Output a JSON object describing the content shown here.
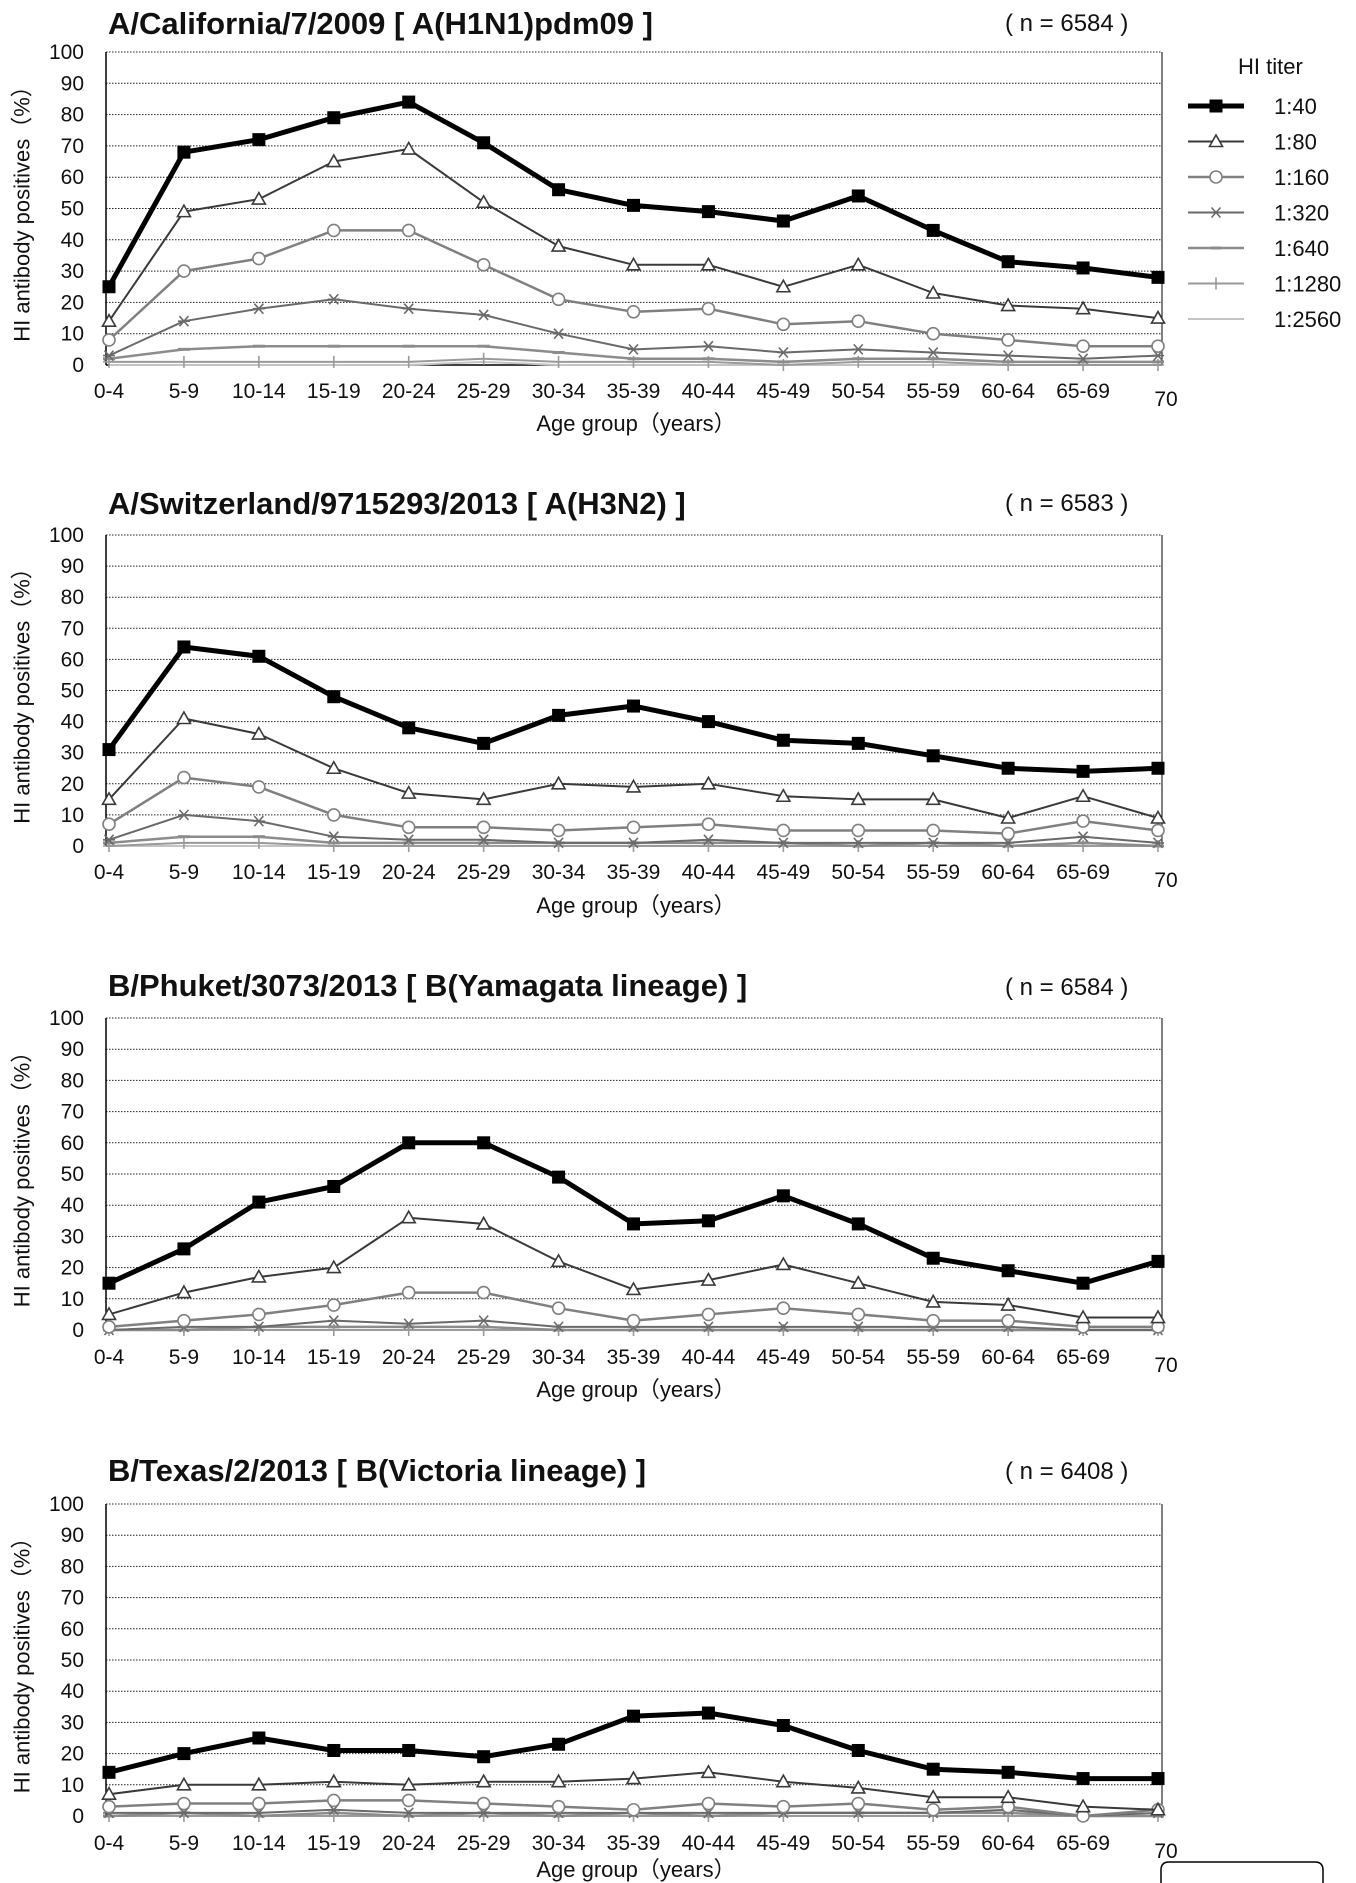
{
  "legend": {
    "title": "HI titer",
    "entries": [
      {
        "label": "1:40",
        "color": "#000000",
        "width": 5,
        "marker": "square"
      },
      {
        "label": "1:80",
        "color": "#3a3a3a",
        "width": 2,
        "marker": "triangle"
      },
      {
        "label": "1:160",
        "color": "#808080",
        "width": 2.5,
        "marker": "circle"
      },
      {
        "label": "1:320",
        "color": "#6a6a6a",
        "width": 2,
        "marker": "star"
      },
      {
        "label": "1:640",
        "color": "#8c8c8c",
        "width": 2.5,
        "marker": "dash"
      },
      {
        "label": "1:1280",
        "color": "#9a9a9a",
        "width": 2,
        "marker": "plus"
      },
      {
        "label": "1:2560",
        "color": "#c4c4c4",
        "width": 2,
        "marker": "none"
      }
    ]
  },
  "chart_data": [
    {
      "type": "line",
      "title": "A/California/7/2009 [  A(H1N1)pdm09  ]",
      "n_label": "( n = 6584 )",
      "xlabel": "Age group（years）",
      "ylabel": "HI antibody positives（%）",
      "ylim": [
        0,
        100
      ],
      "yticks": [
        0,
        10,
        20,
        30,
        40,
        50,
        60,
        70,
        80,
        90,
        100
      ],
      "grid": true,
      "legend_position": "right",
      "categories": [
        "0-4",
        "5-9",
        "10-14",
        "15-19",
        "20-24",
        "25-29",
        "30-34",
        "35-39",
        "40-44",
        "45-49",
        "50-54",
        "55-59",
        "60-64",
        "65-69",
        "70"
      ],
      "series": [
        {
          "name": "1:40",
          "values": [
            25,
            68,
            72,
            79,
            84,
            71,
            56,
            51,
            49,
            46,
            54,
            43,
            33,
            31,
            28
          ]
        },
        {
          "name": "1:80",
          "values": [
            14,
            49,
            53,
            65,
            69,
            52,
            38,
            32,
            32,
            25,
            32,
            23,
            19,
            18,
            15
          ]
        },
        {
          "name": "1:160",
          "values": [
            8,
            30,
            34,
            43,
            43,
            32,
            21,
            17,
            18,
            13,
            14,
            10,
            8,
            6,
            6
          ]
        },
        {
          "name": "1:320",
          "values": [
            3,
            14,
            18,
            21,
            18,
            16,
            10,
            5,
            6,
            4,
            5,
            4,
            3,
            2,
            3
          ]
        },
        {
          "name": "1:640",
          "values": [
            2,
            5,
            6,
            6,
            6,
            6,
            4,
            2,
            2,
            1,
            2,
            2,
            1,
            1,
            1
          ]
        },
        {
          "name": "1:1280",
          "values": [
            1,
            1,
            1,
            1,
            1,
            2,
            1,
            1,
            1,
            0,
            1,
            1,
            0,
            0,
            0
          ]
        },
        {
          "name": "1:2560",
          "values": [
            0,
            0,
            0,
            0,
            0,
            1,
            0,
            0,
            0,
            0,
            0,
            0,
            0,
            0,
            0
          ]
        }
      ]
    },
    {
      "type": "line",
      "title": "A/Switzerland/9715293/2013 [  A(H3N2)  ]",
      "n_label": "( n = 6583 )",
      "xlabel": "Age group（years）",
      "ylabel": "HI antibody positives（%）",
      "ylim": [
        0,
        100
      ],
      "yticks": [
        0,
        10,
        20,
        30,
        40,
        50,
        60,
        70,
        80,
        90,
        100
      ],
      "grid": true,
      "categories": [
        "0-4",
        "5-9",
        "10-14",
        "15-19",
        "20-24",
        "25-29",
        "30-34",
        "35-39",
        "40-44",
        "45-49",
        "50-54",
        "55-59",
        "60-64",
        "65-69",
        "70"
      ],
      "series": [
        {
          "name": "1:40",
          "values": [
            31,
            64,
            61,
            48,
            38,
            33,
            42,
            45,
            40,
            34,
            33,
            29,
            25,
            24,
            25
          ]
        },
        {
          "name": "1:80",
          "values": [
            15,
            41,
            36,
            25,
            17,
            15,
            20,
            19,
            20,
            16,
            15,
            15,
            9,
            16,
            9
          ]
        },
        {
          "name": "1:160",
          "values": [
            7,
            22,
            19,
            10,
            6,
            6,
            5,
            6,
            7,
            5,
            5,
            5,
            4,
            8,
            5
          ]
        },
        {
          "name": "1:320",
          "values": [
            2,
            10,
            8,
            3,
            2,
            2,
            1,
            1,
            2,
            1,
            1,
            1,
            1,
            3,
            1
          ]
        },
        {
          "name": "1:640",
          "values": [
            1,
            3,
            3,
            1,
            1,
            1,
            1,
            1,
            1,
            1,
            0,
            1,
            0,
            1,
            0
          ]
        },
        {
          "name": "1:1280",
          "values": [
            0,
            1,
            1,
            0,
            0,
            0,
            0,
            0,
            0,
            0,
            0,
            0,
            0,
            0,
            0
          ]
        },
        {
          "name": "1:2560",
          "values": [
            0,
            0,
            0,
            0,
            0,
            0,
            0,
            0,
            0,
            0,
            0,
            0,
            0,
            0,
            0
          ]
        }
      ]
    },
    {
      "type": "line",
      "title": "B/Phuket/3073/2013 [  B(Yamagata lineage)  ]",
      "n_label": "( n = 6584 )",
      "xlabel": "Age group（years）",
      "ylabel": "HI antibody positives（%）",
      "ylim": [
        0,
        100
      ],
      "yticks": [
        0,
        10,
        20,
        30,
        40,
        50,
        60,
        70,
        80,
        90,
        100
      ],
      "grid": true,
      "categories": [
        "0-4",
        "5-9",
        "10-14",
        "15-19",
        "20-24",
        "25-29",
        "30-34",
        "35-39",
        "40-44",
        "45-49",
        "50-54",
        "55-59",
        "60-64",
        "65-69",
        "70"
      ],
      "series": [
        {
          "name": "1:40",
          "values": [
            15,
            26,
            41,
            46,
            60,
            60,
            49,
            34,
            35,
            43,
            34,
            23,
            19,
            15,
            22
          ]
        },
        {
          "name": "1:80",
          "values": [
            5,
            12,
            17,
            20,
            36,
            34,
            22,
            13,
            16,
            21,
            15,
            9,
            8,
            4,
            4
          ]
        },
        {
          "name": "1:160",
          "values": [
            1,
            3,
            5,
            8,
            12,
            12,
            7,
            3,
            5,
            7,
            5,
            3,
            3,
            1,
            1
          ]
        },
        {
          "name": "1:320",
          "values": [
            0,
            1,
            1,
            3,
            2,
            3,
            1,
            1,
            1,
            1,
            1,
            1,
            1,
            0,
            0
          ]
        },
        {
          "name": "1:640",
          "values": [
            0,
            0,
            1,
            1,
            1,
            1,
            0,
            0,
            0,
            0,
            0,
            0,
            0,
            0,
            0
          ]
        },
        {
          "name": "1:1280",
          "values": [
            0,
            0,
            0,
            0,
            0,
            0,
            0,
            0,
            0,
            0,
            0,
            0,
            0,
            0,
            0
          ]
        },
        {
          "name": "1:2560",
          "values": [
            0,
            0,
            0,
            0,
            0,
            0,
            0,
            0,
            0,
            0,
            0,
            0,
            0,
            0,
            0
          ]
        }
      ]
    },
    {
      "type": "line",
      "title": "B/Texas/2/2013 [  B(Victoria lineage)  ]",
      "n_label": "( n = 6408 )",
      "xlabel": "Age group（years）",
      "ylabel": "HI antibody positives（%）",
      "ylim": [
        0,
        100
      ],
      "yticks": [
        0,
        10,
        20,
        30,
        40,
        50,
        60,
        70,
        80,
        90,
        100
      ],
      "grid": true,
      "categories": [
        "0-4",
        "5-9",
        "10-14",
        "15-19",
        "20-24",
        "25-29",
        "30-34",
        "35-39",
        "40-44",
        "45-49",
        "50-54",
        "55-59",
        "60-64",
        "65-69",
        "70"
      ],
      "series": [
        {
          "name": "1:40",
          "values": [
            14,
            20,
            25,
            21,
            21,
            19,
            23,
            32,
            33,
            29,
            21,
            15,
            14,
            12,
            12
          ]
        },
        {
          "name": "1:80",
          "values": [
            7,
            10,
            10,
            11,
            10,
            11,
            11,
            12,
            14,
            11,
            9,
            6,
            6,
            3,
            2
          ]
        },
        {
          "name": "1:160",
          "values": [
            3,
            4,
            4,
            5,
            5,
            4,
            3,
            2,
            4,
            3,
            4,
            2,
            3,
            0,
            2
          ]
        },
        {
          "name": "1:320",
          "values": [
            1,
            1,
            1,
            2,
            1,
            1,
            1,
            1,
            1,
            1,
            1,
            1,
            2,
            0,
            1
          ]
        },
        {
          "name": "1:640",
          "values": [
            0,
            1,
            0,
            1,
            0,
            1,
            0,
            1,
            0,
            1,
            1,
            1,
            1,
            0,
            0
          ]
        },
        {
          "name": "1:1280",
          "values": [
            0,
            0,
            0,
            0,
            0,
            0,
            0,
            0,
            0,
            0,
            0,
            0,
            0,
            0,
            0
          ]
        },
        {
          "name": "1:2560",
          "values": [
            0,
            0,
            0,
            0,
            0,
            0,
            0,
            0,
            0,
            0,
            0,
            0,
            0,
            0,
            0
          ]
        }
      ]
    }
  ]
}
